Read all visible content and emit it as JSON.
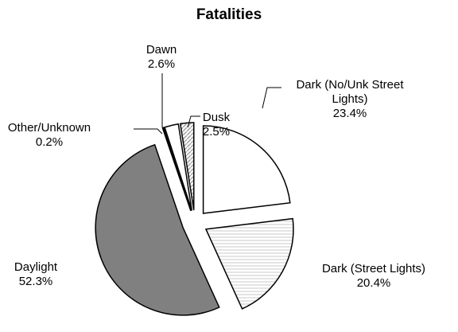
{
  "chart_data": {
    "type": "pie",
    "title": "Fatalities",
    "categories": [
      "Dark (No/Unk Street Lights)",
      "Dark (Street Lights)",
      "Daylight",
      "Other/Unknown",
      "Dawn",
      "Dusk"
    ],
    "values": [
      23.4,
      20.4,
      52.3,
      0.2,
      2.6,
      2.5
    ],
    "value_labels": [
      "23.4%",
      "20.4%",
      "52.3%",
      "0.2%",
      "2.6%",
      "2.5%"
    ],
    "colors": [
      "#ffffff",
      "#c8c8c8",
      "#808080",
      "#000000",
      "#ffffff",
      "#a0a0a0"
    ]
  }
}
